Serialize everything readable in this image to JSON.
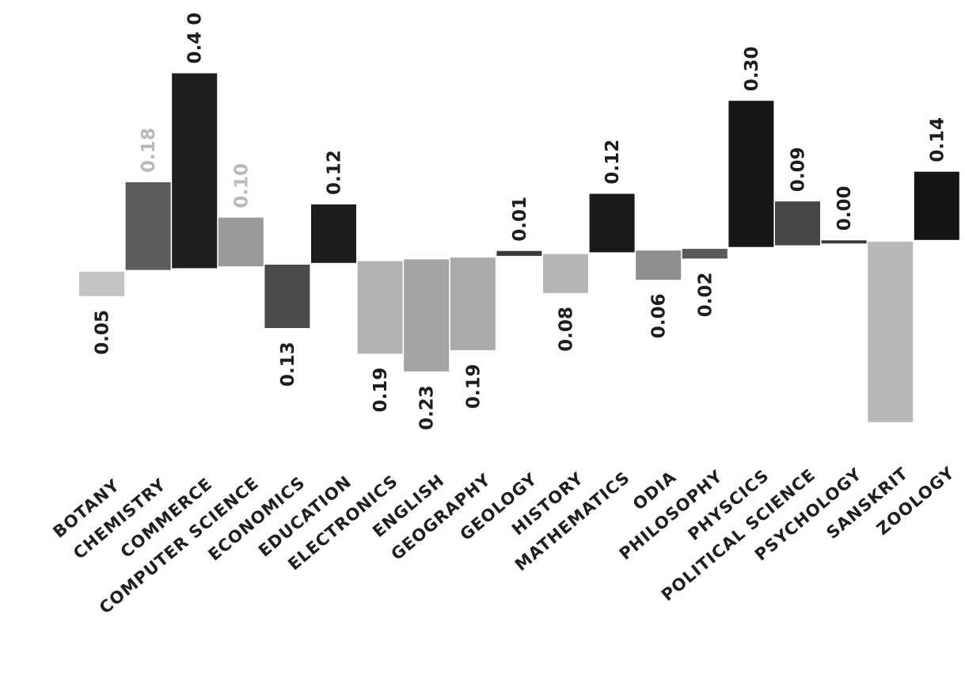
{
  "chart_data": {
    "type": "bar",
    "title": "",
    "xlabel": "",
    "ylabel": "",
    "categories": [
      "BOTANY",
      "CHEMISTRY",
      "COMMERCE",
      "COMPUTER SCIENCE",
      "ECONOMICS",
      "EDUCATION",
      "ELECTRONICS",
      "ENGLISH",
      "GEOGRAPHY",
      "GEOLOGY",
      "HISTORY",
      "MATHEMATICS",
      "ODIA",
      "PHILOSOPHY",
      "PHYSCICS",
      "POLITICAL SCIENCE",
      "PSYCHOLOGY",
      "SANSKRIT",
      "ZOOLOGY"
    ],
    "values": [
      -0.05,
      0.18,
      0.4,
      0.1,
      -0.13,
      0.12,
      -0.19,
      -0.23,
      -0.19,
      0.01,
      -0.08,
      0.12,
      -0.06,
      -0.02,
      0.3,
      0.09,
      0.0,
      -0.37,
      0.14
    ],
    "value_labels": [
      "0.05",
      "0.18",
      "0.4 0",
      "0.10",
      "0.13",
      "0.12",
      "0.19",
      "0.23",
      "0.19",
      "0.01",
      "0.08",
      "0.12",
      "0.06",
      "0.02",
      "0.30",
      "0.09",
      "0.00",
      "",
      "0.14"
    ],
    "bar_colors": [
      "#c4c4c4",
      "#5c5c5c",
      "#1e1e1e",
      "#9a9a9a",
      "#4a4a4a",
      "#1c1c1c",
      "#b3b3b3",
      "#a5a5a5",
      "#aaaaaa",
      "#3a3a3a",
      "#b6b6b6",
      "#1a1a1a",
      "#8f8f8f",
      "#5a5a5a",
      "#161616",
      "#474747",
      "#3a3a3a",
      "#b8b8b8",
      "#141414"
    ],
    "faint_labels": [
      "CHEMISTRY",
      "COMPUTER SCIENCE"
    ]
  }
}
